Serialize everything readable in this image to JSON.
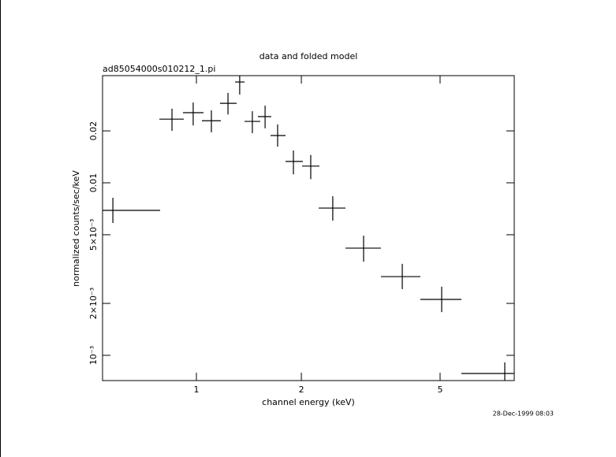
{
  "chart_data": {
    "type": "scatter",
    "title": "data and folded model",
    "subtitle": "ad85054000s010212_1.pi",
    "xlabel": "channel energy (keV)",
    "ylabel": "normalized counts/sec/keV",
    "timestamp": "28-Dec-1999 08:03",
    "xscale": "log",
    "yscale": "log",
    "color": "#000000",
    "xlim": [
      0.538,
      8.16
    ],
    "ylim": [
      0.000714,
      0.0418
    ],
    "xticks": [
      1,
      2,
      5
    ],
    "yticks": [
      {
        "value": 0.001,
        "label": "10⁻³"
      },
      {
        "value": 0.002,
        "label": "2×10⁻³"
      },
      {
        "value": 0.005,
        "label": "5×10⁻³"
      },
      0.01,
      0.02
    ],
    "x": [
      0.576,
      0.851,
      0.979,
      1.104,
      1.232,
      1.331,
      1.447,
      1.574,
      1.71,
      1.898,
      2.128,
      2.461,
      3.017,
      3.895,
      5.053,
      7.665
    ],
    "x_low": [
      0.538,
      0.783,
      0.915,
      1.037,
      1.169,
      1.291,
      1.374,
      1.501,
      1.632,
      1.802,
      2.01,
      2.242,
      2.677,
      3.383,
      4.39,
      5.756
    ],
    "x_high": [
      0.787,
      0.92,
      1.048,
      1.175,
      1.304,
      1.374,
      1.525,
      1.64,
      1.802,
      2.02,
      2.254,
      2.677,
      3.383,
      4.39,
      5.756,
      8.16
    ],
    "values": [
      0.00692,
      0.0234,
      0.0255,
      0.0229,
      0.0289,
      0.0384,
      0.0227,
      0.0242,
      0.0188,
      0.0133,
      0.0125,
      0.00714,
      0.00418,
      0.00286,
      0.00211,
      0.000785
    ],
    "y_low": [
      0.00585,
      0.02,
      0.0215,
      0.0196,
      0.0249,
      0.0325,
      0.0194,
      0.0207,
      0.0162,
      0.0112,
      0.0105,
      0.00604,
      0.00349,
      0.00242,
      0.00178,
      0.00065
    ],
    "y_high": [
      0.00819,
      0.0269,
      0.0292,
      0.0263,
      0.0332,
      0.0418,
      0.026,
      0.028,
      0.0218,
      0.0154,
      0.0145,
      0.00836,
      0.00494,
      0.00339,
      0.0025,
      0.00091
    ]
  }
}
